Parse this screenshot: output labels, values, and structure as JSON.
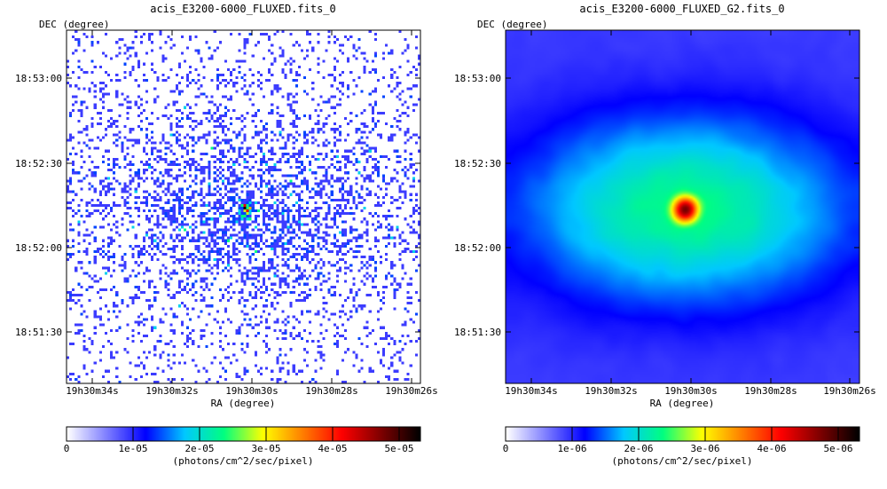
{
  "chart_data": [
    {
      "type": "heatmap",
      "title": "acis_E3200-6000_FLUXED.fits_0",
      "xlabel": "RA (degree)",
      "ylabel": "DEC (degree)",
      "x_ticks": [
        "19h30m34s",
        "19h30m32s",
        "19h30m30s",
        "19h30m28s",
        "19h30m26s"
      ],
      "y_ticks": [
        "18:53:00",
        "18:52:30",
        "18:52:00",
        "18:51:30"
      ],
      "colorbar": {
        "range": [
          0,
          5.3e-05
        ],
        "ticks": [
          "0",
          "1e-05",
          "2e-05",
          "3e-05",
          "4e-05",
          "5e-05"
        ],
        "label": "(photons/cm^2/sec/pixel)"
      },
      "source_center": {
        "ra": "19h30m30.1s",
        "dec": "18:52:14"
      },
      "style": "sparse counts, unsmoothed"
    },
    {
      "type": "heatmap",
      "title": "acis_E3200-6000_FLUXED_G2.fits_0",
      "xlabel": "RA (degree)",
      "ylabel": "DEC (degree)",
      "x_ticks": [
        "19h30m34s",
        "19h30m32s",
        "19h30m30s",
        "19h30m28s",
        "19h30m26s"
      ],
      "y_ticks": [
        "18:53:00",
        "18:52:30",
        "18:52:00",
        "18:51:30"
      ],
      "colorbar": {
        "range": [
          0,
          5.3e-06
        ],
        "ticks": [
          "0",
          "1e-06",
          "2e-06",
          "3e-06",
          "4e-06",
          "5e-06"
        ],
        "label": "(photons/cm^2/sec/pixel)"
      },
      "source_center": {
        "ra": "19h30m30.1s",
        "dec": "18:52:14"
      },
      "style": "gaussian smoothed"
    }
  ],
  "colors": {
    "colormap": [
      "#ffffff",
      "#8080ff",
      "#0000ff",
      "#00c8ff",
      "#00ff80",
      "#ffff00",
      "#ff8000",
      "#ff0000",
      "#800000",
      "#000000"
    ],
    "frame": "#000000",
    "background": "#ffffff"
  }
}
